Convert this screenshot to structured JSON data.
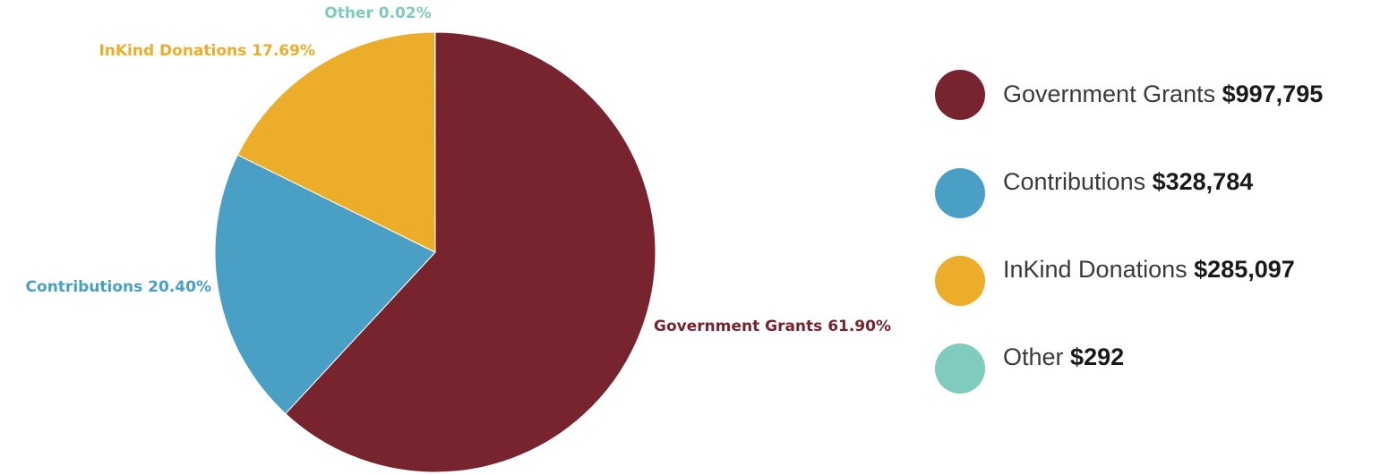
{
  "chart_data": {
    "type": "pie",
    "slices": [
      {
        "name": "Government Grants",
        "percent": 61.9,
        "percent_label": "61.90%",
        "amount": "$997,795",
        "color": "#77242f"
      },
      {
        "name": "Contributions",
        "percent": 20.4,
        "percent_label": "20.40%",
        "amount": "$328,784",
        "color": "#4aa0c4"
      },
      {
        "name": "InKind Donations",
        "percent": 17.69,
        "percent_label": "17.69%",
        "amount": "$285,097",
        "color": "#ecad2a"
      },
      {
        "name": "Other",
        "percent": 0.02,
        "percent_label": "0.02%",
        "amount": "$292",
        "color": "#7fcbbd"
      }
    ],
    "legend_position": "right",
    "start_angle": "top",
    "direction": "clockwise"
  }
}
